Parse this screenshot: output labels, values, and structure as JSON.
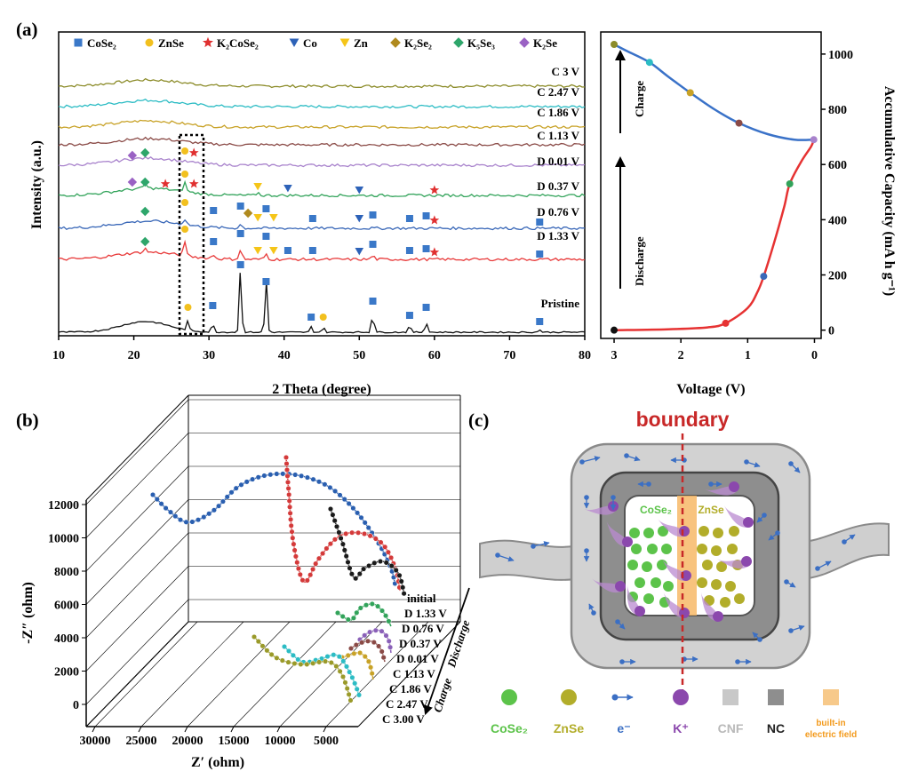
{
  "panel_labels": [
    "(a)",
    "(b)",
    "(c)"
  ],
  "chart_data": [
    {
      "type": "line",
      "panel": "(a)",
      "xlabel": "2 Theta (degree)",
      "ylabel": "Intensity (a.u.)",
      "xlim": [
        10,
        80
      ],
      "xticks": [
        10,
        20,
        30,
        40,
        50,
        60,
        70,
        80
      ],
      "legend": [
        {
          "name": "CoSe₂",
          "marker": "square",
          "color": "#3a78c8"
        },
        {
          "name": "ZnSe",
          "marker": "circle",
          "color": "#f2c01e"
        },
        {
          "name": "K₂CoSe₂",
          "marker": "star",
          "color": "#e03030"
        },
        {
          "name": "Co",
          "marker": "triangle-down",
          "color": "#2d62b8"
        },
        {
          "name": "Zn",
          "marker": "triangle-down",
          "color": "#f5c518"
        },
        {
          "name": "K₂Se₂",
          "marker": "diamond",
          "color": "#b08a1e"
        },
        {
          "name": "K₅Se₃",
          "marker": "diamond",
          "color": "#2ea66b"
        },
        {
          "name": "K₂Se",
          "marker": "diamond",
          "color": "#9a62c4"
        }
      ],
      "series": [
        {
          "name": "C 3 V",
          "color": "#8c8c2a"
        },
        {
          "name": "C 2.47 V",
          "color": "#2cbcc4"
        },
        {
          "name": "C 1.86 V",
          "color": "#c8a227"
        },
        {
          "name": "C 1.13 V",
          "color": "#8a4a46"
        },
        {
          "name": "D 0.01 V",
          "color": "#a882cc"
        },
        {
          "name": "D 0.37 V",
          "color": "#32a35a"
        },
        {
          "name": "D 0.76 V",
          "color": "#3a68b8"
        },
        {
          "name": "D 1.33 V",
          "color": "#e83a3a"
        },
        {
          "name": "Pristine",
          "color": "#111111"
        }
      ],
      "pristine_peaks_2theta": [
        27.2,
        30.5,
        34.2,
        37.6,
        43.6,
        45.2,
        51.8,
        56.7,
        58.9,
        74.0
      ]
    },
    {
      "type": "line",
      "panel": "(a) right",
      "xlabel": "Voltage (V)",
      "ylabel": "Accumulative Capacity (mA h g⁻¹)",
      "xlim": [
        3.2,
        -0.1
      ],
      "xticks": [
        3,
        2,
        1,
        0
      ],
      "ylim": [
        -30,
        1080
      ],
      "yticks": [
        0,
        200,
        400,
        600,
        800,
        1000
      ],
      "annotations": [
        "Charge",
        "Discharge"
      ],
      "series": [
        {
          "name": "Discharge",
          "color": "#e63232",
          "x": [
            3.0,
            2.2,
            1.6,
            1.33,
            1.0,
            0.85,
            0.76,
            0.6,
            0.45,
            0.37,
            0.2,
            0.05,
            0.01
          ],
          "y": [
            0,
            3,
            10,
            25,
            80,
            140,
            195,
            320,
            450,
            530,
            610,
            665,
            690
          ]
        },
        {
          "name": "Charge",
          "color": "#3a72c8",
          "x": [
            0.01,
            0.3,
            0.7,
            1.13,
            1.5,
            1.86,
            2.2,
            2.47,
            2.8,
            3.0
          ],
          "y": [
            690,
            690,
            710,
            750,
            800,
            860,
            920,
            970,
            1010,
            1035
          ]
        }
      ],
      "markers": [
        {
          "x": 3.0,
          "y": 0,
          "color": "#111111"
        },
        {
          "x": 1.33,
          "y": 25,
          "color": "#e63232"
        },
        {
          "x": 0.76,
          "y": 195,
          "color": "#3a68b8"
        },
        {
          "x": 0.37,
          "y": 530,
          "color": "#32a35a"
        },
        {
          "x": 0.01,
          "y": 690,
          "color": "#a882cc"
        },
        {
          "x": 1.13,
          "y": 750,
          "color": "#8a4a46"
        },
        {
          "x": 1.86,
          "y": 860,
          "color": "#c8a227"
        },
        {
          "x": 2.47,
          "y": 970,
          "color": "#2cbcc4"
        },
        {
          "x": 3.0,
          "y": 1035,
          "color": "#8c8c2a"
        }
      ]
    },
    {
      "type": "line",
      "panel": "(b)",
      "xlabel": "Z′ (ohm)",
      "ylabel": "-Z″ (ohm)",
      "xticks": [
        30000,
        25000,
        20000,
        15000,
        10000,
        5000
      ],
      "yticks": [
        0,
        2000,
        4000,
        6000,
        8000,
        10000,
        12000
      ],
      "series_labels": [
        "initial",
        "D 1.33 V",
        "D 0.76 V",
        "D 0.37 V",
        "D 0.01 V",
        "C 1.13 V",
        "C 1.86 V",
        "C 2.47 V",
        "C 3.00 V"
      ],
      "arrows": [
        "Discharge",
        "Charge"
      ]
    }
  ],
  "schematic": {
    "title": "boundary",
    "left_label": "CoSe₂",
    "right_label": "ZnSe",
    "legend": [
      {
        "label": "CoSe₂",
        "color": "#5cc34a"
      },
      {
        "label": "ZnSe",
        "color": "#b2ad2a"
      },
      {
        "label": "e⁻",
        "color": "#3b6fc4"
      },
      {
        "label": "K⁺",
        "color": "#8b48ad"
      },
      {
        "label": "CNF",
        "color": "#c8c8c8"
      },
      {
        "label": "NC",
        "color": "#222222"
      },
      {
        "label": "built-in",
        "color": "#f39a1c"
      },
      {
        "label": "electric field",
        "color": "#f39a1c"
      }
    ]
  }
}
